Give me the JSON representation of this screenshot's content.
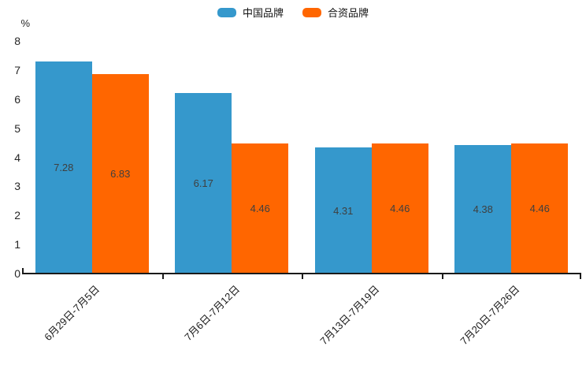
{
  "chart_data": {
    "type": "bar",
    "title": "",
    "categories": [
      "6月29日-7月5日",
      "7月6日-7月12日",
      "7月13日-7月19日",
      "7月20日-7月26日"
    ],
    "series": [
      {
        "name": "中国品牌",
        "color": "#3598CC",
        "values": [
          7.28,
          6.17,
          4.31,
          4.38
        ]
      },
      {
        "name": "合资品牌",
        "color": "#FF6600",
        "values": [
          6.83,
          4.46,
          4.46,
          4.46
        ]
      }
    ],
    "value_labels": [
      [
        "7.28",
        "6.17",
        "4.31",
        "4.38"
      ],
      [
        "6.83",
        "4.46",
        "4.46",
        "4.46"
      ]
    ],
    "xlabel": "",
    "ylabel": "%",
    "ylim": [
      0,
      8
    ],
    "yticks": [
      "0",
      "1",
      "2",
      "3",
      "4",
      "5",
      "6",
      "7",
      "8"
    ],
    "grid": false,
    "legend_position": "top-center",
    "colors": {
      "background": "#ffffff",
      "axis": "#1a1a1a",
      "value_label": "#3f3f3f",
      "tick_label": "#262626"
    }
  }
}
